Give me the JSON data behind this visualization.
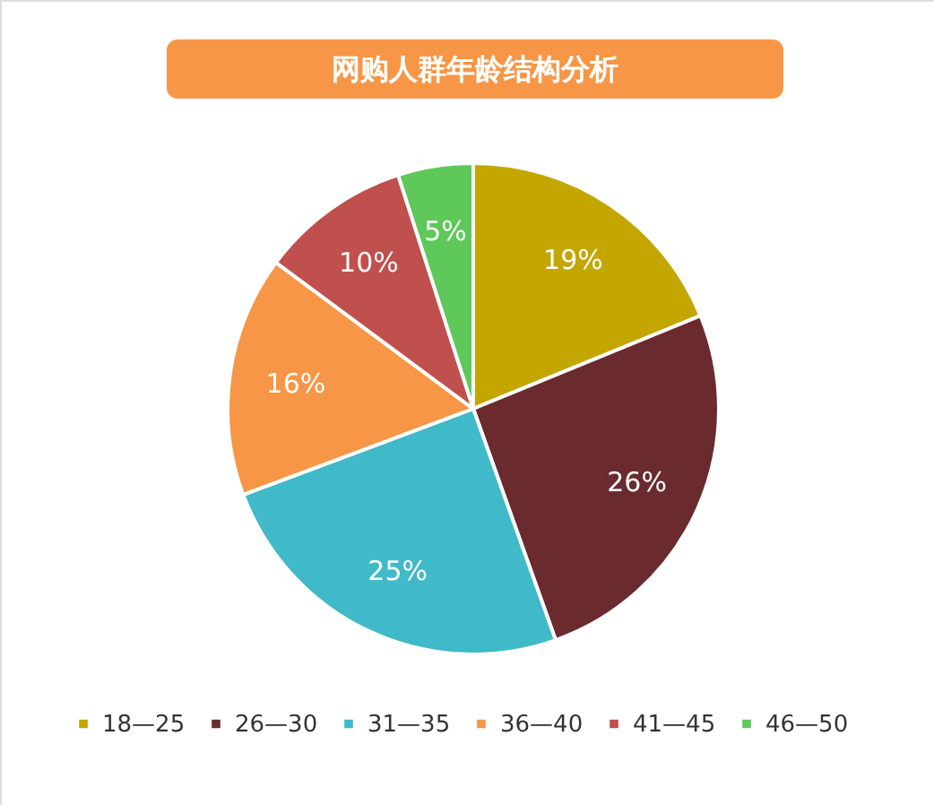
{
  "chart_data": {
    "type": "pie",
    "title": "网购人群年龄结构分析",
    "categories": [
      "18—25",
      "26—30",
      "31—35",
      "36—40",
      "41—45",
      "46—50"
    ],
    "values": [
      19,
      26,
      25,
      16,
      10,
      5
    ],
    "value_labels": [
      "19%",
      "26%",
      "25%",
      "16%",
      "10%",
      "5%"
    ],
    "colors": [
      "#c4a600",
      "#6b2a2e",
      "#40b9c8",
      "#f79646",
      "#c0504d",
      "#5ec85a"
    ],
    "legend": "bottom"
  }
}
